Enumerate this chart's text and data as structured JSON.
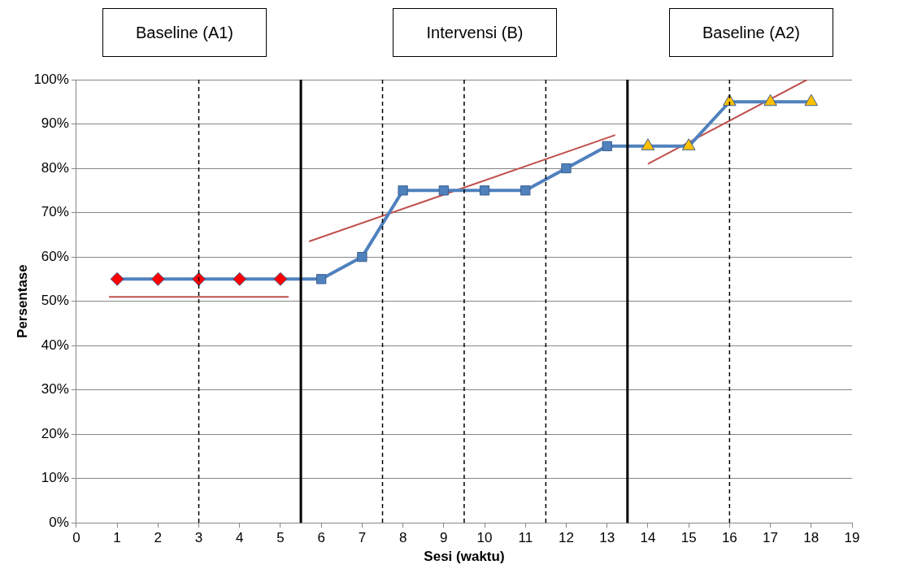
{
  "chart_data": {
    "type": "line",
    "xlabel": "Sesi (waktu)",
    "ylabel": "Persentase",
    "annotations": [
      "Baseline (A1)",
      "Intervensi (B)",
      "Baseline (A2)"
    ],
    "xlim": [
      0,
      19
    ],
    "xticks": [
      0,
      1,
      2,
      3,
      4,
      5,
      6,
      7,
      8,
      9,
      10,
      11,
      12,
      13,
      14,
      15,
      16,
      17,
      18,
      19
    ],
    "ylim": [
      0,
      100
    ],
    "yticks": [
      {
        "value": 0,
        "label": "0%"
      },
      {
        "value": 10,
        "label": "10%"
      },
      {
        "value": 20,
        "label": "20%"
      },
      {
        "value": 30,
        "label": "30%"
      },
      {
        "value": 40,
        "label": "40%"
      },
      {
        "value": 50,
        "label": "50%"
      },
      {
        "value": 60,
        "label": "60%"
      },
      {
        "value": 70,
        "label": "70%"
      },
      {
        "value": 80,
        "label": "80%"
      },
      {
        "value": 90,
        "label": "90%"
      },
      {
        "value": 100,
        "label": "100%"
      }
    ],
    "grid": "y",
    "legend": false,
    "series": [
      {
        "type": "line",
        "color": "#4f81bd",
        "marker": "none",
        "x": [
          1,
          2,
          3,
          4,
          5,
          6,
          7,
          8,
          9,
          10,
          11,
          12,
          13,
          14,
          15,
          16,
          17,
          18
        ],
        "values": [
          55,
          55,
          55,
          55,
          55,
          55,
          60,
          75,
          75,
          75,
          75,
          80,
          85,
          85,
          85,
          95,
          95,
          95
        ]
      },
      {
        "type": "scatter",
        "color": "#ff0000",
        "marker": "diamond",
        "x": [
          1,
          2,
          3,
          4,
          5
        ],
        "values": [
          55,
          55,
          55,
          55,
          55
        ]
      },
      {
        "type": "scatter",
        "color": "#4f81bd",
        "marker": "square",
        "x": [
          6,
          7,
          8,
          9,
          10,
          11,
          12,
          13
        ],
        "values": [
          55,
          60,
          75,
          75,
          75,
          75,
          80,
          85
        ]
      },
      {
        "type": "scatter",
        "color": "#ffc000",
        "marker": "triangle",
        "x": [
          14,
          15,
          16,
          17,
          18
        ],
        "values": [
          85,
          85,
          95,
          95,
          95
        ]
      },
      {
        "type": "line",
        "color": "#c0504d",
        "marker": "none",
        "x": [
          0.8,
          5.2
        ],
        "values": [
          51,
          51
        ]
      },
      {
        "type": "line",
        "color": "#c0504d",
        "marker": "none",
        "x": [
          5.7,
          13.2
        ],
        "values": [
          63.5,
          87.5
        ]
      },
      {
        "type": "line",
        "color": "#c0504d",
        "marker": "none",
        "x": [
          14,
          17.9
        ],
        "values": [
          81,
          100
        ]
      }
    ],
    "ref_lines": [
      {
        "axis": "x",
        "value": 5.5,
        "color": "#000000",
        "line_style": "solid"
      },
      {
        "axis": "x",
        "value": 13.5,
        "color": "#000000",
        "line_style": "solid"
      },
      {
        "axis": "x",
        "value": 3,
        "color": "#000000",
        "line_style": "dashed"
      },
      {
        "axis": "x",
        "value": 7.5,
        "color": "#000000",
        "line_style": "dashed"
      },
      {
        "axis": "x",
        "value": 9.5,
        "color": "#000000",
        "line_style": "dashed"
      },
      {
        "axis": "x",
        "value": 11.5,
        "color": "#000000",
        "line_style": "dashed"
      },
      {
        "axis": "x",
        "value": 16,
        "color": "#000000",
        "line_style": "dashed"
      }
    ]
  }
}
